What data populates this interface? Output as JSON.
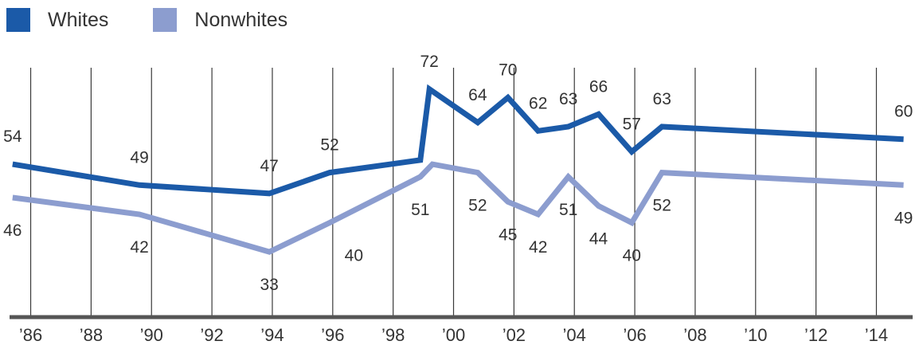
{
  "chart_data": {
    "type": "line",
    "x_ticks": [
      "’86",
      "’88",
      "’90",
      "’92",
      "’94",
      "’96",
      "’98",
      "’00",
      "’02",
      "’04",
      "’06",
      "’08",
      "’10",
      "’12",
      "’14"
    ],
    "xlim": [
      1985.3,
      2015.2
    ],
    "ylim": [
      25,
      80
    ],
    "grid": "vertical",
    "legend_placement": "top-left",
    "series": [
      {
        "name": "Whites",
        "color": "#1b5aa8",
        "label_position": "above",
        "points": [
          {
            "x": 1985.4,
            "y": 54
          },
          {
            "x": 1989.6,
            "y": 49
          },
          {
            "x": 1993.9,
            "y": 47
          },
          {
            "x": 1995.9,
            "y": 52
          },
          {
            "x": 1998.9,
            "y": 55,
            "label": false
          },
          {
            "x": 1999.2,
            "y": 72
          },
          {
            "x": 2000.8,
            "y": 64
          },
          {
            "x": 2001.8,
            "y": 70
          },
          {
            "x": 2002.8,
            "y": 62
          },
          {
            "x": 2003.8,
            "y": 63
          },
          {
            "x": 2004.8,
            "y": 66
          },
          {
            "x": 2005.9,
            "y": 57
          },
          {
            "x": 2006.9,
            "y": 63
          },
          {
            "x": 2014.9,
            "y": 60
          }
        ]
      },
      {
        "name": "Nonwhites",
        "color": "#8c9dcf",
        "label_position": "below",
        "points": [
          {
            "x": 1985.4,
            "y": 46
          },
          {
            "x": 1989.6,
            "y": 42
          },
          {
            "x": 1993.9,
            "y": 33
          },
          {
            "x": 1995.9,
            "y": 40,
            "label": false
          },
          {
            "x": 1998.9,
            "y": 51
          },
          {
            "x": 1999.3,
            "y": 54,
            "label": false
          },
          {
            "x": 2000.8,
            "y": 52
          },
          {
            "x": 2001.8,
            "y": 45
          },
          {
            "x": 2002.8,
            "y": 42
          },
          {
            "x": 2003.8,
            "y": 51
          },
          {
            "x": 2004.8,
            "y": 44
          },
          {
            "x": 2005.9,
            "y": 40
          },
          {
            "x": 2006.9,
            "y": 52
          },
          {
            "x": 2014.9,
            "y": 49
          }
        ]
      }
    ],
    "extra_labels": [
      {
        "series": "Nonwhites",
        "x": 1996.7,
        "y": 40,
        "text": "40"
      }
    ]
  }
}
